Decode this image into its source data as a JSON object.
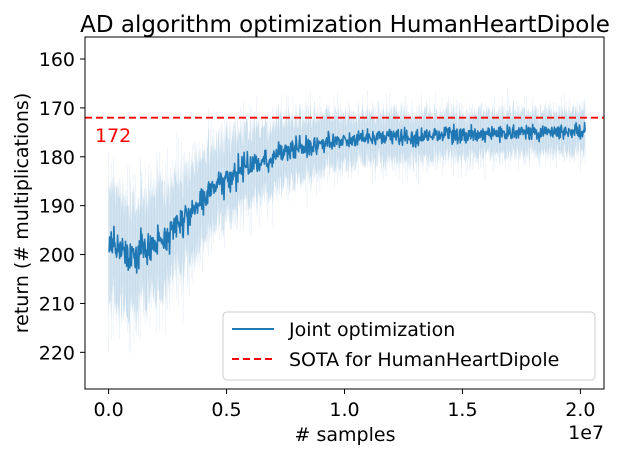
{
  "chart_data": {
    "type": "line",
    "title": "AD algorithm optimization HumanHeartDipole",
    "xlabel": "# samples",
    "ylabel": "return (# multiplications)",
    "x_offset_label": "1e7",
    "xlim": [
      -0.1,
      2.1
    ],
    "ylim": [
      227.5,
      155.5
    ],
    "y_inverted": true,
    "xticks": [
      0.0,
      0.5,
      1.0,
      1.5,
      2.0
    ],
    "xtick_labels": [
      "0.0",
      "0.5",
      "1.0",
      "1.5",
      "2.0"
    ],
    "yticks": [
      160,
      170,
      180,
      190,
      200,
      210,
      220
    ],
    "ytick_labels": [
      "160",
      "170",
      "180",
      "190",
      "200",
      "210",
      "220"
    ],
    "series": [
      {
        "name": "Joint optimization",
        "color": "#1f77b4",
        "style": "solid",
        "x_range": [
          0.0,
          2.02
        ],
        "mean_points": [
          [
            0.0,
            197
          ],
          [
            0.05,
            199
          ],
          [
            0.1,
            200
          ],
          [
            0.15,
            199
          ],
          [
            0.2,
            198
          ],
          [
            0.25,
            196
          ],
          [
            0.3,
            194
          ],
          [
            0.35,
            191
          ],
          [
            0.4,
            189
          ],
          [
            0.45,
            186
          ],
          [
            0.5,
            185
          ],
          [
            0.55,
            183
          ],
          [
            0.6,
            182
          ],
          [
            0.65,
            181
          ],
          [
            0.7,
            180
          ],
          [
            0.75,
            179
          ],
          [
            0.8,
            178
          ],
          [
            0.85,
            178
          ],
          [
            0.9,
            177
          ],
          [
            1.0,
            176.5
          ],
          [
            1.1,
            176
          ],
          [
            1.2,
            176
          ],
          [
            1.3,
            176
          ],
          [
            1.4,
            175.5
          ],
          [
            1.5,
            175.5
          ],
          [
            1.6,
            175.5
          ],
          [
            1.7,
            175
          ],
          [
            1.8,
            175
          ],
          [
            1.9,
            175
          ],
          [
            2.02,
            175
          ]
        ],
        "noise_amplitude_points": [
          [
            0.0,
            6
          ],
          [
            0.2,
            5
          ],
          [
            0.4,
            4
          ],
          [
            0.6,
            3.5
          ],
          [
            0.8,
            3
          ],
          [
            1.0,
            2.5
          ],
          [
            1.5,
            2.2
          ],
          [
            2.02,
            2.0
          ]
        ],
        "band_width_points": [
          [
            0.0,
            13
          ],
          [
            0.3,
            11
          ],
          [
            0.5,
            9
          ],
          [
            0.8,
            7
          ],
          [
            1.0,
            5.5
          ],
          [
            1.5,
            5
          ],
          [
            2.02,
            4.5
          ]
        ]
      },
      {
        "name": "SOTA for HumanHeartDipole",
        "color": "#ff0000",
        "style": "dashed",
        "y": 172
      }
    ],
    "annotations": [
      {
        "text": "172",
        "x": -0.05,
        "y": 176,
        "color": "#ff0000"
      }
    ],
    "legend": {
      "position": "lower-right"
    }
  }
}
